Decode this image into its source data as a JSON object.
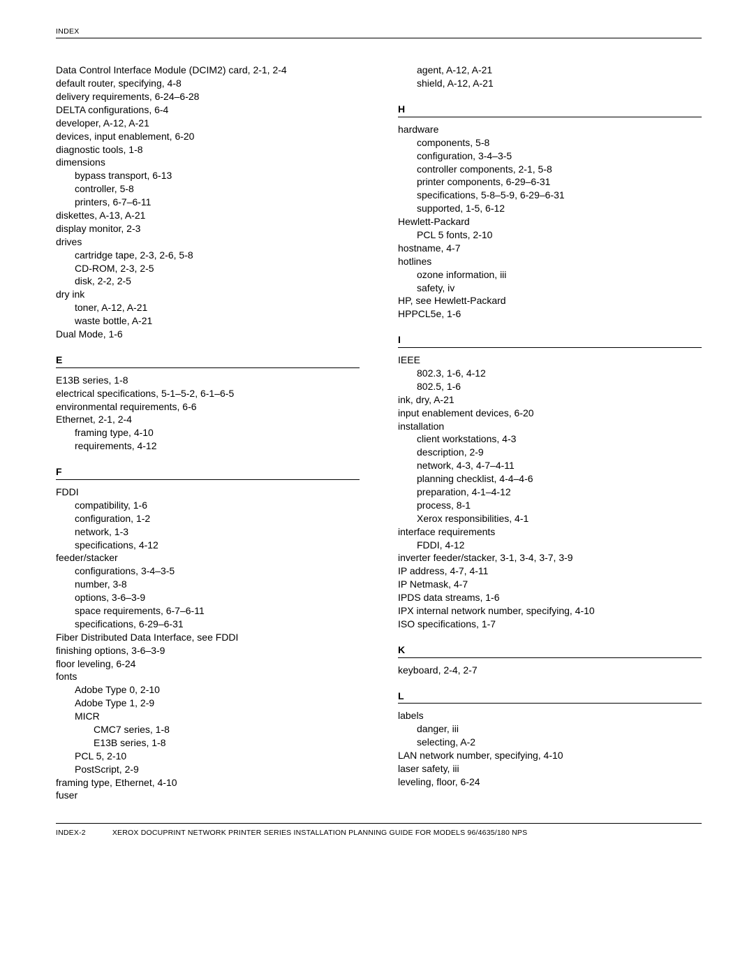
{
  "header": "INDEX",
  "footer": {
    "pageno": "INDEX-2",
    "title": "XEROX DOCUPRINT NETWORK PRINTER SERIES INSTALLATION PLANNING GUIDE FOR MODELS 96/4635/180 NPS"
  },
  "left": [
    {
      "t": "e",
      "lvl": 0,
      "txt": "Data Control Interface Module (DCIM2) card, 2-1, 2-4"
    },
    {
      "t": "e",
      "lvl": 0,
      "txt": "default router, specifying, 4-8"
    },
    {
      "t": "e",
      "lvl": 0,
      "txt": "delivery requirements, 6-24–6-28"
    },
    {
      "t": "e",
      "lvl": 0,
      "txt": "DELTA configurations, 6-4"
    },
    {
      "t": "e",
      "lvl": 0,
      "txt": "developer, A-12, A-21"
    },
    {
      "t": "e",
      "lvl": 0,
      "txt": "devices, input enablement, 6-20"
    },
    {
      "t": "e",
      "lvl": 0,
      "txt": "diagnostic tools, 1-8"
    },
    {
      "t": "e",
      "lvl": 0,
      "txt": "dimensions"
    },
    {
      "t": "e",
      "lvl": 1,
      "txt": "bypass transport, 6-13"
    },
    {
      "t": "e",
      "lvl": 1,
      "txt": "controller, 5-8"
    },
    {
      "t": "e",
      "lvl": 1,
      "txt": "printers, 6-7–6-11"
    },
    {
      "t": "e",
      "lvl": 0,
      "txt": "diskettes, A-13, A-21"
    },
    {
      "t": "e",
      "lvl": 0,
      "txt": "display monitor, 2-3"
    },
    {
      "t": "e",
      "lvl": 0,
      "txt": "drives"
    },
    {
      "t": "e",
      "lvl": 1,
      "txt": "cartridge tape, 2-3, 2-6, 5-8"
    },
    {
      "t": "e",
      "lvl": 1,
      "txt": "CD-ROM, 2-3, 2-5"
    },
    {
      "t": "e",
      "lvl": 1,
      "txt": "disk, 2-2, 2-5"
    },
    {
      "t": "e",
      "lvl": 0,
      "txt": "dry ink"
    },
    {
      "t": "e",
      "lvl": 1,
      "txt": "toner, A-12, A-21"
    },
    {
      "t": "e",
      "lvl": 1,
      "txt": "waste bottle, A-21"
    },
    {
      "t": "e",
      "lvl": 0,
      "txt": "Dual Mode, 1-6"
    },
    {
      "t": "h",
      "txt": "E"
    },
    {
      "t": "e",
      "lvl": 0,
      "txt": "E13B series, 1-8"
    },
    {
      "t": "e",
      "lvl": 0,
      "txt": "electrical specifications, 5-1–5-2, 6-1–6-5"
    },
    {
      "t": "e",
      "lvl": 0,
      "txt": "environmental requirements, 6-6"
    },
    {
      "t": "e",
      "lvl": 0,
      "txt": "Ethernet, 2-1, 2-4"
    },
    {
      "t": "e",
      "lvl": 1,
      "txt": "framing type, 4-10"
    },
    {
      "t": "e",
      "lvl": 1,
      "txt": "requirements, 4-12"
    },
    {
      "t": "h",
      "txt": "F"
    },
    {
      "t": "e",
      "lvl": 0,
      "txt": "FDDI"
    },
    {
      "t": "e",
      "lvl": 1,
      "txt": "compatibility, 1-6"
    },
    {
      "t": "e",
      "lvl": 1,
      "txt": "configuration, 1-2"
    },
    {
      "t": "e",
      "lvl": 1,
      "txt": "network, 1-3"
    },
    {
      "t": "e",
      "lvl": 1,
      "txt": "specifications, 4-12"
    },
    {
      "t": "e",
      "lvl": 0,
      "txt": "feeder/stacker"
    },
    {
      "t": "e",
      "lvl": 1,
      "txt": "configurations, 3-4–3-5"
    },
    {
      "t": "e",
      "lvl": 1,
      "txt": "number, 3-8"
    },
    {
      "t": "e",
      "lvl": 1,
      "txt": "options, 3-6–3-9"
    },
    {
      "t": "e",
      "lvl": 1,
      "txt": "space requirements, 6-7–6-11"
    },
    {
      "t": "e",
      "lvl": 1,
      "txt": "specifications, 6-29–6-31"
    },
    {
      "t": "e",
      "lvl": 0,
      "txt": "Fiber Distributed Data Interface, see FDDI"
    },
    {
      "t": "e",
      "lvl": 0,
      "txt": "finishing options, 3-6–3-9"
    },
    {
      "t": "e",
      "lvl": 0,
      "txt": "floor leveling, 6-24"
    },
    {
      "t": "e",
      "lvl": 0,
      "txt": "fonts"
    },
    {
      "t": "e",
      "lvl": 1,
      "txt": "Adobe Type 0, 2-10"
    },
    {
      "t": "e",
      "lvl": 1,
      "txt": "Adobe Type 1, 2-9"
    },
    {
      "t": "e",
      "lvl": 1,
      "txt": "MICR"
    },
    {
      "t": "e",
      "lvl": 2,
      "txt": "CMC7 series, 1-8"
    },
    {
      "t": "e",
      "lvl": 2,
      "txt": "E13B series, 1-8"
    },
    {
      "t": "e",
      "lvl": 1,
      "txt": "PCL 5, 2-10"
    },
    {
      "t": "e",
      "lvl": 1,
      "txt": "PostScript, 2-9"
    },
    {
      "t": "e",
      "lvl": 0,
      "txt": "framing type, Ethernet, 4-10"
    },
    {
      "t": "e",
      "lvl": 0,
      "txt": "fuser"
    }
  ],
  "right": [
    {
      "t": "e",
      "lvl": 1,
      "txt": "agent, A-12, A-21"
    },
    {
      "t": "e",
      "lvl": 1,
      "txt": "shield, A-12, A-21"
    },
    {
      "t": "h",
      "txt": "H"
    },
    {
      "t": "e",
      "lvl": 0,
      "txt": "hardware"
    },
    {
      "t": "e",
      "lvl": 1,
      "txt": "components, 5-8"
    },
    {
      "t": "e",
      "lvl": 1,
      "txt": "configuration, 3-4–3-5"
    },
    {
      "t": "e",
      "lvl": 1,
      "txt": "controller components, 2-1, 5-8"
    },
    {
      "t": "e",
      "lvl": 1,
      "txt": "printer components, 6-29–6-31"
    },
    {
      "t": "e",
      "lvl": 1,
      "txt": "specifications, 5-8–5-9, 6-29–6-31"
    },
    {
      "t": "e",
      "lvl": 1,
      "txt": "supported, 1-5, 6-12"
    },
    {
      "t": "e",
      "lvl": 0,
      "txt": "Hewlett-Packard"
    },
    {
      "t": "e",
      "lvl": 1,
      "txt": "PCL 5 fonts, 2-10"
    },
    {
      "t": "e",
      "lvl": 0,
      "txt": "hostname, 4-7"
    },
    {
      "t": "e",
      "lvl": 0,
      "txt": "hotlines"
    },
    {
      "t": "e",
      "lvl": 1,
      "txt": "ozone information, iii"
    },
    {
      "t": "e",
      "lvl": 1,
      "txt": "safety, iv"
    },
    {
      "t": "e",
      "lvl": 0,
      "txt": "HP, see Hewlett-Packard"
    },
    {
      "t": "e",
      "lvl": 0,
      "txt": "HPPCL5e, 1-6"
    },
    {
      "t": "h",
      "txt": "I"
    },
    {
      "t": "e",
      "lvl": 0,
      "txt": "IEEE"
    },
    {
      "t": "e",
      "lvl": 1,
      "txt": "802.3, 1-6, 4-12"
    },
    {
      "t": "e",
      "lvl": 1,
      "txt": "802.5, 1-6"
    },
    {
      "t": "e",
      "lvl": 0,
      "txt": "ink, dry, A-21"
    },
    {
      "t": "e",
      "lvl": 0,
      "txt": "input enablement devices, 6-20"
    },
    {
      "t": "e",
      "lvl": 0,
      "txt": "installation"
    },
    {
      "t": "e",
      "lvl": 1,
      "txt": "client workstations, 4-3"
    },
    {
      "t": "e",
      "lvl": 1,
      "txt": "description, 2-9"
    },
    {
      "t": "e",
      "lvl": 1,
      "txt": "network, 4-3, 4-7–4-11"
    },
    {
      "t": "e",
      "lvl": 1,
      "txt": "planning checklist, 4-4–4-6"
    },
    {
      "t": "e",
      "lvl": 1,
      "txt": "preparation, 4-1–4-12"
    },
    {
      "t": "e",
      "lvl": 1,
      "txt": "process, 8-1"
    },
    {
      "t": "e",
      "lvl": 1,
      "txt": "Xerox responsibilities, 4-1"
    },
    {
      "t": "e",
      "lvl": 0,
      "txt": "interface requirements"
    },
    {
      "t": "e",
      "lvl": 1,
      "txt": "FDDI, 4-12"
    },
    {
      "t": "e",
      "lvl": 0,
      "txt": "inverter feeder/stacker, 3-1, 3-4, 3-7, 3-9"
    },
    {
      "t": "e",
      "lvl": 0,
      "txt": "IP address, 4-7, 4-11"
    },
    {
      "t": "e",
      "lvl": 0,
      "txt": "IP Netmask, 4-7"
    },
    {
      "t": "e",
      "lvl": 0,
      "txt": "IPDS data streams, 1-6"
    },
    {
      "t": "e",
      "lvl": 0,
      "txt": "IPX internal network number, specifying, 4-10"
    },
    {
      "t": "e",
      "lvl": 0,
      "txt": "ISO specifications, 1-7"
    },
    {
      "t": "h",
      "txt": "K"
    },
    {
      "t": "e",
      "lvl": 0,
      "txt": "keyboard, 2-4, 2-7"
    },
    {
      "t": "h",
      "txt": "L"
    },
    {
      "t": "e",
      "lvl": 0,
      "txt": "labels"
    },
    {
      "t": "e",
      "lvl": 1,
      "txt": "danger, iii"
    },
    {
      "t": "e",
      "lvl": 1,
      "txt": "selecting, A-2"
    },
    {
      "t": "e",
      "lvl": 0,
      "txt": "LAN network number, specifying, 4-10"
    },
    {
      "t": "e",
      "lvl": 0,
      "txt": "laser safety, iii"
    },
    {
      "t": "e",
      "lvl": 0,
      "txt": "leveling, floor, 6-24"
    }
  ]
}
